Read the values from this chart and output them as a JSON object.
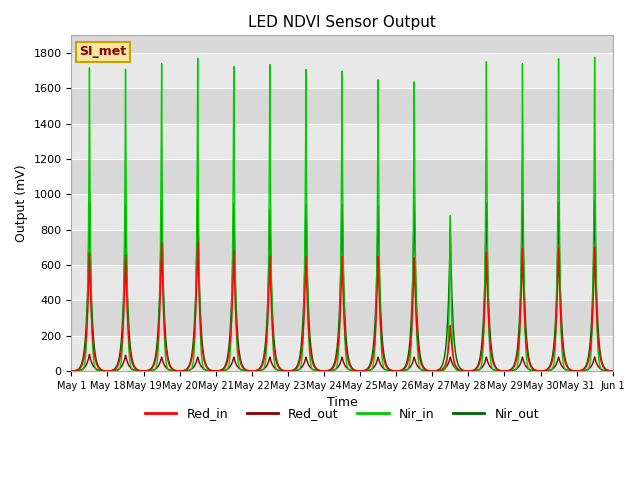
{
  "title": "LED NDVI Sensor Output",
  "xlabel": "Time",
  "ylabel": "Output (mV)",
  "ylim": [
    0,
    1900
  ],
  "yticks": [
    0,
    200,
    400,
    600,
    800,
    1000,
    1200,
    1400,
    1600,
    1800
  ],
  "background_color": "#ffffff",
  "plot_bg_color": "#d8d8d8",
  "legend_labels": [
    "Red_in",
    "Red_out",
    "Nir_in",
    "Nir_out"
  ],
  "legend_colors": [
    "#ff0000",
    "#8b0000",
    "#00cc00",
    "#006400"
  ],
  "watermark_text": "SI_met",
  "watermark_bg": "#f5e6a0",
  "watermark_border": "#c8a000",
  "grid_color": "#ffffff",
  "num_cycles": 15,
  "red_in_peak": 670,
  "red_out_peak": 100,
  "nir_in_peak": 1780,
  "nir_out_peak": 960,
  "line_width": 1.0,
  "xtick_labels": [
    "May 1",
    "May 18",
    "May 19",
    "May 20",
    "May 21",
    "May 22",
    "May 23",
    "May 24",
    "May 25",
    "May 26",
    "May 27",
    "May 28",
    "May 29",
    "May 30",
    "May 31",
    "Jun 1"
  ],
  "nir_in_peaks": [
    1720,
    1720,
    1760,
    1800,
    1760,
    1780,
    1760,
    1760,
    1700,
    1680,
    900,
    1780,
    1760,
    1780,
    1780
  ],
  "red_in_peaks": [
    670,
    660,
    730,
    740,
    690,
    660,
    660,
    660,
    660,
    650,
    260,
    680,
    700,
    700,
    700
  ],
  "nir_out_peaks": [
    950,
    940,
    970,
    980,
    960,
    930,
    960,
    960,
    950,
    960,
    820,
    960,
    970,
    960,
    970
  ],
  "red_out_peaks": [
    95,
    90,
    80,
    80,
    80,
    80,
    80,
    80,
    80,
    80,
    80,
    80,
    80,
    80,
    80
  ]
}
